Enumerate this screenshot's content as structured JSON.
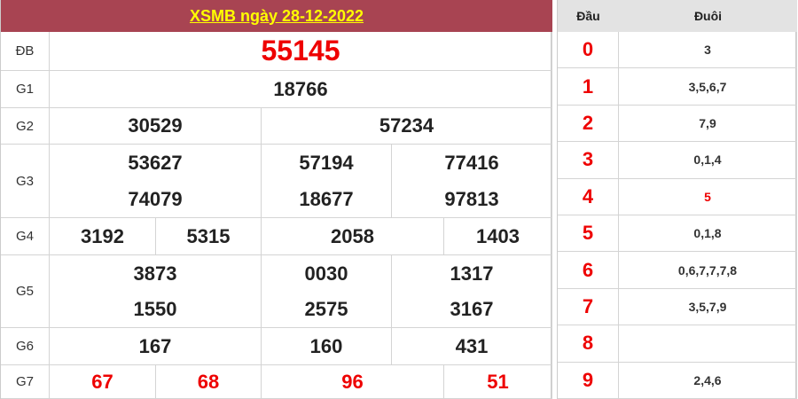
{
  "title": "XSMB ngày 28-12-2022",
  "prizes": {
    "db": {
      "label": "ĐB",
      "values": [
        "55145"
      ]
    },
    "g1": {
      "label": "G1",
      "values": [
        "18766"
      ]
    },
    "g2": {
      "label": "G2",
      "values": [
        "30529",
        "57234"
      ]
    },
    "g3": {
      "label": "G3",
      "values": [
        "53627",
        "57194",
        "77416",
        "74079",
        "18677",
        "97813"
      ]
    },
    "g4": {
      "label": "G4",
      "values": [
        "3192",
        "5315",
        "2058",
        "1403"
      ]
    },
    "g5": {
      "label": "G5",
      "values": [
        "3873",
        "0030",
        "1317",
        "1550",
        "2575",
        "3167"
      ]
    },
    "g6": {
      "label": "G6",
      "values": [
        "167",
        "160",
        "431"
      ]
    },
    "g7": {
      "label": "G7",
      "values": [
        "67",
        "68",
        "96",
        "51"
      ]
    }
  },
  "loto": {
    "head_label": "Đầu",
    "tail_label": "Đuôi",
    "rows": [
      {
        "head": "0",
        "tail": "3"
      },
      {
        "head": "1",
        "tail": "3,5,6,7"
      },
      {
        "head": "2",
        "tail": "7,9"
      },
      {
        "head": "3",
        "tail": "0,1,4"
      },
      {
        "head": "4",
        "tail": "5"
      },
      {
        "head": "5",
        "tail": "0,1,8"
      },
      {
        "head": "6",
        "tail": "0,6,7,7,7,8"
      },
      {
        "head": "7",
        "tail": "3,5,7,9"
      },
      {
        "head": "8",
        "tail": ""
      },
      {
        "head": "9",
        "tail": "2,4,6"
      }
    ]
  },
  "colors": {
    "header_bg": "#a84452",
    "title": "#ffff00",
    "special": "#ee0000"
  }
}
